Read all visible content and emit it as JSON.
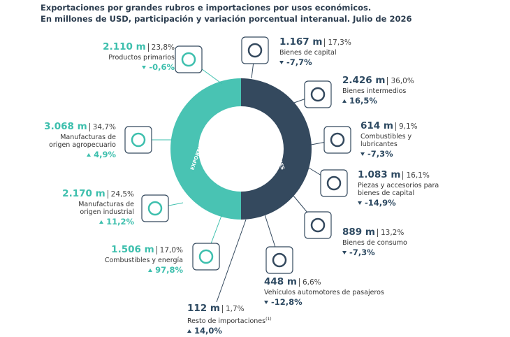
{
  "header": {
    "title": [
      "Exportaciones por grandes rubros e importaciones por usos económicos.",
      "En millones de USD, participación y variación porcentual interanual. Julio de 2026"
    ]
  },
  "donut": {
    "exports_label": "EXPORTACIONES",
    "imports_label": "IMPORTACIONES"
  },
  "exports": [
    {
      "amount": "2.110 m",
      "share": "23,8%",
      "label": [
        "Productos primarios"
      ],
      "change": "-0,6%"
    },
    {
      "amount": "3.068 m",
      "share": "34,7%",
      "label": [
        "Manufacturas de",
        "origen agropecuario"
      ],
      "change": "4,9%"
    },
    {
      "amount": "2.170 m",
      "share": "24,5%",
      "label": [
        "Manufacturas de",
        "origen industrial"
      ],
      "change": "11,2%"
    },
    {
      "amount": "1.506 m",
      "share": "17,0%",
      "label": [
        "Combustibles y energía"
      ],
      "change": "97,8%"
    }
  ],
  "imports": [
    {
      "amount": "1.167 m",
      "share": "17,3%",
      "label": [
        "Bienes de capital"
      ],
      "change": "-7,7%"
    },
    {
      "amount": "2.426 m",
      "share": "36,0%",
      "label": [
        "Bienes intermedios"
      ],
      "change": "16,5%"
    },
    {
      "amount": "614 m",
      "share": "9,1%",
      "label": [
        "Combustibles y",
        "lubricantes"
      ],
      "change": "-7,3%"
    },
    {
      "amount": "1.083 m",
      "share": "16,1%",
      "label": [
        "Piezas y accesorios para",
        "bienes de capital"
      ],
      "change": "-14,9%"
    },
    {
      "amount": "889 m",
      "share": "13,2%",
      "label": [
        "Bienes de consumo"
      ],
      "change": "-7,3%"
    },
    {
      "amount": "448 m",
      "share": "6,6%",
      "label": [
        "Vehículos automotores de pasajeros"
      ],
      "change": "-12,8%"
    },
    {
      "amount": "112 m",
      "share": "1,7%",
      "label": [
        "Resto de importaciones"
      ],
      "note": "(1)",
      "change": "14,0%"
    }
  ]
}
